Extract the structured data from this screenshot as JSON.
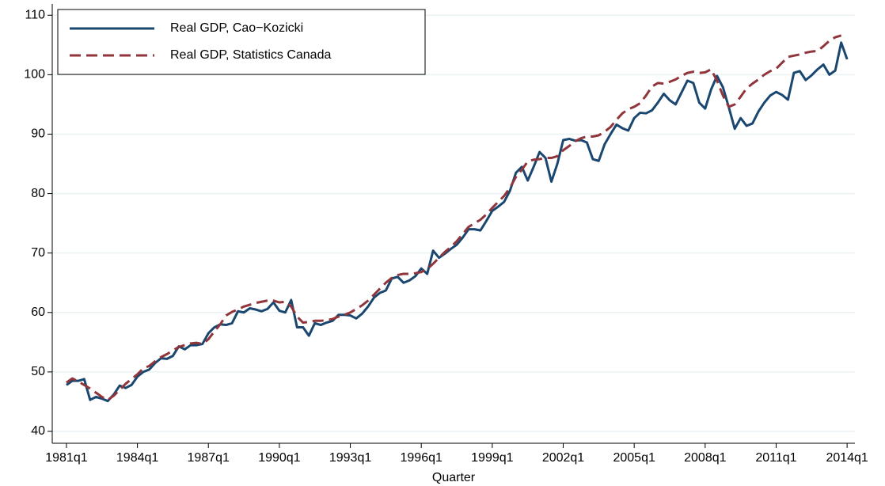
{
  "chart_data": {
    "type": "line",
    "x_label": "Quarter",
    "x": [
      1981,
      1981.25,
      1981.5,
      1981.75,
      1982,
      1982.25,
      1982.5,
      1982.75,
      1983,
      1983.25,
      1983.5,
      1983.75,
      1984,
      1984.25,
      1984.5,
      1984.75,
      1985,
      1985.25,
      1985.5,
      1985.75,
      1986,
      1986.25,
      1986.5,
      1986.75,
      1987,
      1987.25,
      1987.5,
      1987.75,
      1988,
      1988.25,
      1988.5,
      1988.75,
      1989,
      1989.25,
      1989.5,
      1989.75,
      1990,
      1990.25,
      1990.5,
      1990.75,
      1991,
      1991.25,
      1991.5,
      1991.75,
      1992,
      1992.25,
      1992.5,
      1992.75,
      1993,
      1993.25,
      1993.5,
      1993.75,
      1994,
      1994.25,
      1994.5,
      1994.75,
      1995,
      1995.25,
      1995.5,
      1995.75,
      1996,
      1996.25,
      1996.5,
      1996.75,
      1997,
      1997.25,
      1997.5,
      1997.75,
      1998,
      1998.25,
      1998.5,
      1998.75,
      1999,
      1999.25,
      1999.5,
      1999.75,
      2000,
      2000.25,
      2000.5,
      2000.75,
      2001,
      2001.25,
      2001.5,
      2001.75,
      2002,
      2002.25,
      2002.5,
      2002.75,
      2003,
      2003.25,
      2003.5,
      2003.75,
      2004,
      2004.25,
      2004.5,
      2004.75,
      2005,
      2005.25,
      2005.5,
      2005.75,
      2006,
      2006.25,
      2006.5,
      2006.75,
      2007,
      2007.25,
      2007.5,
      2007.75,
      2008,
      2008.25,
      2008.5,
      2008.75,
      2009,
      2009.25,
      2009.5,
      2009.75,
      2010,
      2010.25,
      2010.5,
      2010.75,
      2011,
      2011.25,
      2011.5,
      2011.75,
      2012,
      2012.25,
      2012.5,
      2012.75,
      2013,
      2013.25,
      2013.5,
      2013.75,
      2014
    ],
    "series": [
      {
        "name": "Real GDP, Cao−Kozicki",
        "color": "#1a476f",
        "dash": false,
        "values": [
          47.8,
          48.5,
          48.5,
          48.8,
          45.3,
          45.8,
          45.5,
          45.1,
          46.2,
          47.7,
          47.3,
          47.8,
          49.2,
          50.0,
          50.4,
          51.5,
          52.3,
          52.2,
          52.7,
          54.3,
          53.8,
          54.5,
          54.5,
          54.7,
          56.5,
          57.5,
          58.0,
          57.9,
          58.2,
          60.2,
          60.0,
          60.7,
          60.5,
          60.2,
          60.6,
          61.7,
          60.3,
          60.0,
          62.1,
          57.5,
          57.5,
          56.1,
          58.2,
          57.9,
          58.3,
          58.6,
          59.6,
          59.6,
          59.5,
          59.0,
          59.8,
          61.0,
          62.5,
          63.3,
          63.7,
          65.7,
          66.0,
          65.0,
          65.4,
          66.1,
          67.4,
          66.5,
          70.4,
          69.2,
          69.9,
          70.7,
          71.4,
          72.6,
          74.0,
          74.0,
          73.8,
          75.4,
          77.1,
          77.8,
          78.6,
          80.5,
          83.5,
          84.5,
          82.2,
          84.5,
          87.0,
          86.0,
          82.0,
          85.0,
          89.0,
          89.2,
          88.9,
          89.0,
          88.6,
          85.8,
          85.5,
          88.3,
          90.0,
          91.6,
          91.0,
          90.6,
          92.7,
          93.6,
          93.5,
          94.0,
          95.3,
          96.8,
          95.7,
          95.0,
          97.0,
          99.0,
          98.6,
          95.3,
          94.3,
          97.5,
          99.8,
          97.9,
          94.5,
          90.9,
          92.7,
          91.4,
          91.8,
          93.8,
          95.3,
          96.5,
          97.1,
          96.6,
          95.8,
          100.3,
          100.6,
          99.1,
          99.9,
          100.9,
          101.7,
          100.0,
          100.7,
          105.4,
          102.6
        ]
      },
      {
        "name": "Real GDP, Statistics Canada",
        "color": "#90353b",
        "dash": true,
        "values": [
          48.2,
          48.9,
          48.4,
          47.8,
          47.2,
          46.5,
          45.8,
          45.3,
          46.0,
          47.0,
          48.0,
          48.8,
          49.6,
          50.6,
          51.0,
          51.8,
          52.5,
          53.0,
          53.6,
          54.2,
          54.5,
          54.8,
          54.9,
          54.7,
          55.5,
          56.8,
          58.0,
          59.5,
          60.1,
          60.5,
          61.0,
          61.3,
          61.6,
          61.8,
          62.0,
          62.0,
          61.7,
          61.8,
          61.0,
          59.3,
          58.3,
          58.4,
          58.6,
          58.6,
          58.7,
          58.9,
          59.3,
          59.6,
          60.0,
          60.6,
          61.2,
          62.0,
          63.0,
          64.0,
          65.0,
          65.8,
          66.3,
          66.5,
          66.5,
          66.6,
          66.8,
          67.3,
          68.2,
          69.2,
          70.2,
          71.0,
          72.0,
          73.2,
          74.4,
          75.0,
          75.6,
          76.5,
          77.6,
          78.6,
          79.6,
          81.0,
          82.8,
          84.0,
          85.4,
          85.7,
          85.8,
          86.0,
          86.0,
          86.3,
          87.3,
          88.0,
          88.8,
          89.3,
          89.6,
          89.6,
          89.8,
          90.4,
          91.2,
          92.4,
          93.5,
          94.2,
          94.6,
          95.2,
          96.5,
          98.0,
          98.6,
          98.5,
          98.8,
          99.2,
          99.8,
          100.3,
          100.5,
          100.3,
          100.4,
          100.9,
          99.0,
          96.5,
          94.6,
          95.0,
          96.3,
          97.7,
          98.5,
          99.2,
          100.0,
          100.6,
          101.0,
          102.0,
          103.0,
          103.2,
          103.4,
          103.7,
          103.9,
          104.0,
          104.8,
          105.7,
          106.3,
          106.6,
          null
        ]
      }
    ],
    "xlim": [
      1980.4,
      2014.33
    ],
    "xticks": [
      {
        "value": 1981,
        "label": "1981q1"
      },
      {
        "value": 1984,
        "label": "1984q1"
      },
      {
        "value": 1987,
        "label": "1987q1"
      },
      {
        "value": 1990,
        "label": "1990q1"
      },
      {
        "value": 1993,
        "label": "1993q1"
      },
      {
        "value": 1996,
        "label": "1996q1"
      },
      {
        "value": 1999,
        "label": "1999q1"
      },
      {
        "value": 2002,
        "label": "2002q1"
      },
      {
        "value": 2005,
        "label": "2005q1"
      },
      {
        "value": 2008,
        "label": "2008q1"
      },
      {
        "value": 2011,
        "label": "2011q1"
      },
      {
        "value": 2014,
        "label": "2014q1"
      }
    ],
    "ylim": [
      38,
      111.9
    ],
    "yticks": [
      40,
      50,
      60,
      70,
      80,
      90,
      100,
      110
    ],
    "grid": true,
    "legend": "upper-left"
  }
}
